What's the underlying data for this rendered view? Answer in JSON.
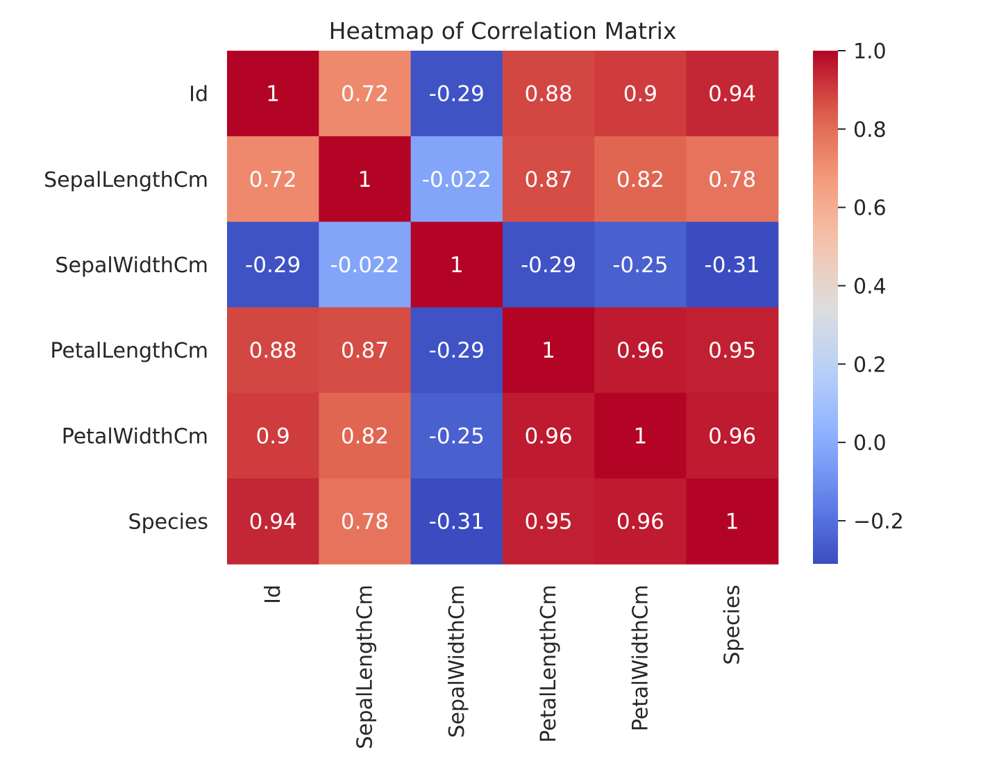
{
  "chart_data": {
    "type": "heatmap",
    "title": "Heatmap of Correlation Matrix",
    "colormap": "coolwarm",
    "row_labels": [
      "Id",
      "SepalLengthCm",
      "SepalWidthCm",
      "PetalLengthCm",
      "PetalWidthCm",
      "Species"
    ],
    "col_labels": [
      "Id",
      "SepalLengthCm",
      "SepalWidthCm",
      "PetalLengthCm",
      "PetalWidthCm",
      "Species"
    ],
    "matrix": [
      [
        1,
        0.72,
        -0.29,
        0.88,
        0.9,
        0.94
      ],
      [
        0.72,
        1,
        -0.022,
        0.87,
        0.82,
        0.78
      ],
      [
        -0.29,
        -0.022,
        1,
        -0.29,
        -0.25,
        -0.31
      ],
      [
        0.88,
        0.87,
        -0.29,
        1,
        0.96,
        0.95
      ],
      [
        0.9,
        0.82,
        -0.25,
        0.96,
        1,
        0.96
      ],
      [
        0.94,
        0.78,
        -0.31,
        0.95,
        0.96,
        1
      ]
    ],
    "cell_labels": [
      [
        "1",
        "0.72",
        "-0.29",
        "0.88",
        "0.9",
        "0.94"
      ],
      [
        "0.72",
        "1",
        "-0.022",
        "0.87",
        "0.82",
        "0.78"
      ],
      [
        "-0.29",
        "-0.022",
        "1",
        "-0.29",
        "-0.25",
        "-0.31"
      ],
      [
        "0.88",
        "0.87",
        "-0.29",
        "1",
        "0.96",
        "0.95"
      ],
      [
        "0.9",
        "0.82",
        "-0.25",
        "0.96",
        "1",
        "0.96"
      ],
      [
        "0.94",
        "0.78",
        "-0.31",
        "0.95",
        "0.96",
        "1"
      ]
    ],
    "colorbar": {
      "range": [
        -0.31,
        1.0
      ],
      "ticks": [
        1.0,
        0.8,
        0.6,
        0.4,
        0.2,
        0.0,
        -0.2
      ],
      "tick_labels": [
        "1.0",
        "0.8",
        "0.6",
        "0.4",
        "0.2",
        "0.0",
        "−0.2"
      ]
    }
  }
}
